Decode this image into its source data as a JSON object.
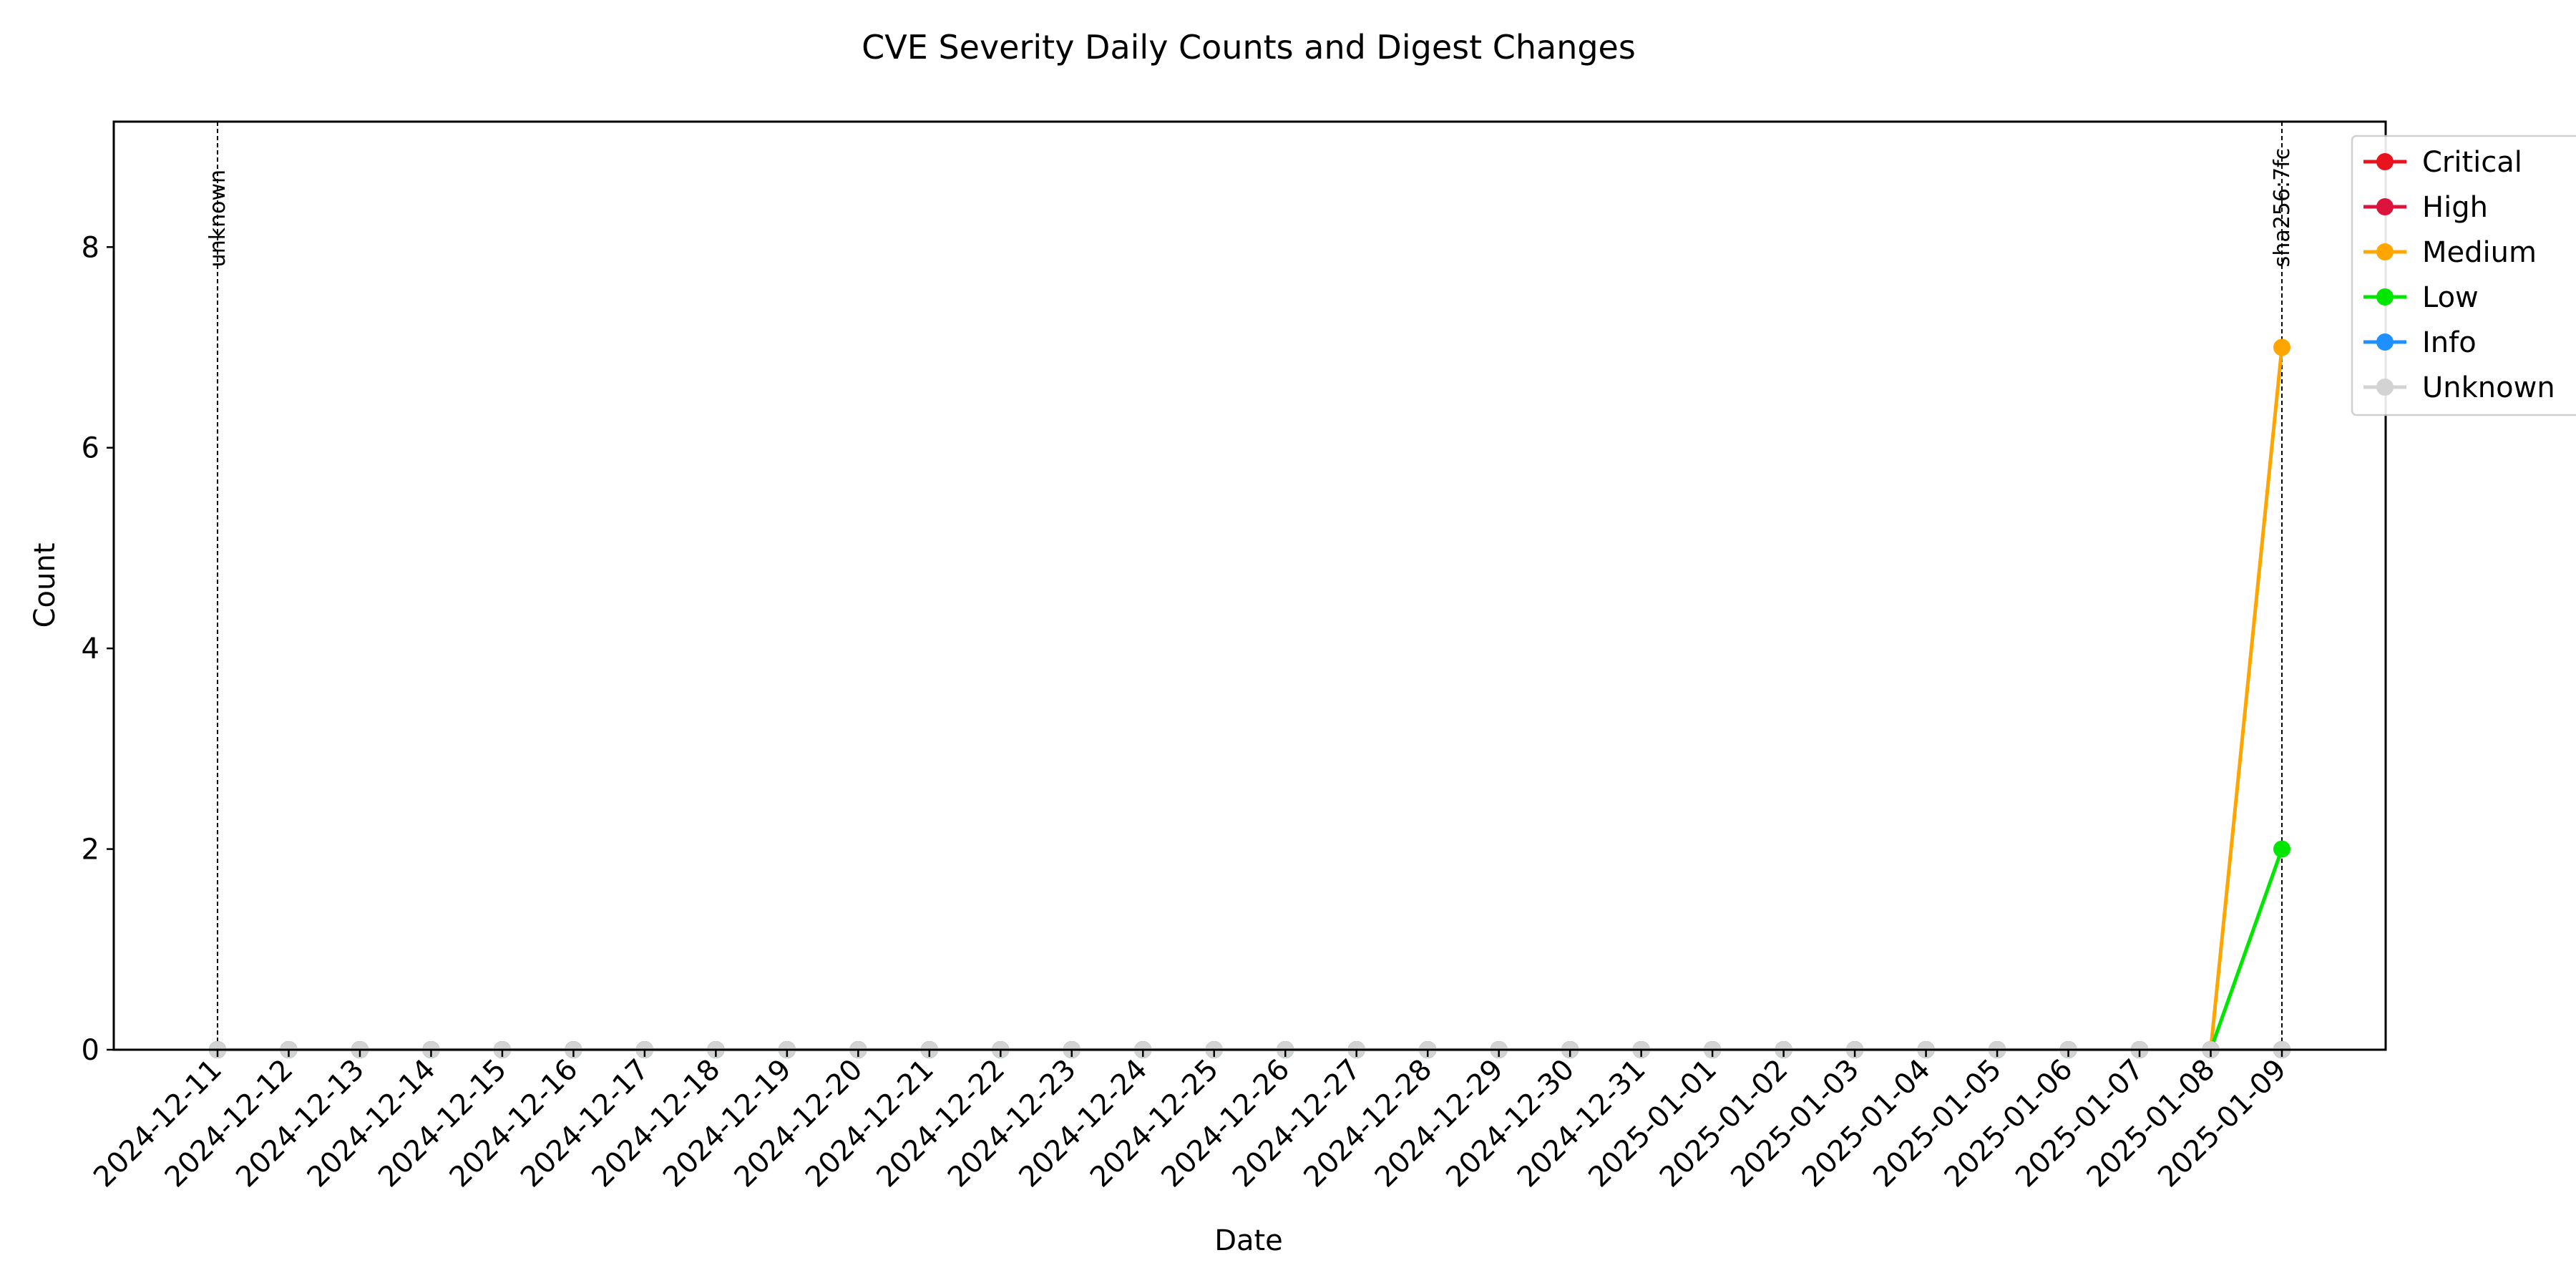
{
  "chart_data": {
    "type": "line",
    "title": "CVE Severity Daily Counts and Digest Changes",
    "xlabel": "Date",
    "ylabel": "Count",
    "ylim": [
      0,
      9.25
    ],
    "yticks": [
      0,
      2,
      4,
      6,
      8
    ],
    "categories": [
      "2024-12-11",
      "2024-12-12",
      "2024-12-13",
      "2024-12-14",
      "2024-12-15",
      "2024-12-16",
      "2024-12-17",
      "2024-12-18",
      "2024-12-19",
      "2024-12-20",
      "2024-12-21",
      "2024-12-22",
      "2024-12-23",
      "2024-12-24",
      "2024-12-25",
      "2024-12-26",
      "2024-12-27",
      "2024-12-28",
      "2024-12-29",
      "2024-12-30",
      "2024-12-31",
      "2025-01-01",
      "2025-01-02",
      "2025-01-03",
      "2025-01-04",
      "2025-01-05",
      "2025-01-06",
      "2025-01-07",
      "2025-01-08",
      "2025-01-09"
    ],
    "series": [
      {
        "name": "Critical",
        "color": "#e8131c",
        "values": [
          0,
          0,
          0,
          0,
          0,
          0,
          0,
          0,
          0,
          0,
          0,
          0,
          0,
          0,
          0,
          0,
          0,
          0,
          0,
          0,
          0,
          0,
          0,
          0,
          0,
          0,
          0,
          0,
          0,
          0
        ]
      },
      {
        "name": "High",
        "color": "#dc143c",
        "values": [
          0,
          0,
          0,
          0,
          0,
          0,
          0,
          0,
          0,
          0,
          0,
          0,
          0,
          0,
          0,
          0,
          0,
          0,
          0,
          0,
          0,
          0,
          0,
          0,
          0,
          0,
          0,
          0,
          0,
          0
        ]
      },
      {
        "name": "Medium",
        "color": "#ffa500",
        "values": [
          0,
          0,
          0,
          0,
          0,
          0,
          0,
          0,
          0,
          0,
          0,
          0,
          0,
          0,
          0,
          0,
          0,
          0,
          0,
          0,
          0,
          0,
          0,
          0,
          0,
          0,
          0,
          0,
          0,
          7
        ]
      },
      {
        "name": "Low",
        "color": "#00e600",
        "values": [
          0,
          0,
          0,
          0,
          0,
          0,
          0,
          0,
          0,
          0,
          0,
          0,
          0,
          0,
          0,
          0,
          0,
          0,
          0,
          0,
          0,
          0,
          0,
          0,
          0,
          0,
          0,
          0,
          0,
          2
        ]
      },
      {
        "name": "Info",
        "color": "#1e90ff",
        "values": [
          0,
          0,
          0,
          0,
          0,
          0,
          0,
          0,
          0,
          0,
          0,
          0,
          0,
          0,
          0,
          0,
          0,
          0,
          0,
          0,
          0,
          0,
          0,
          0,
          0,
          0,
          0,
          0,
          0,
          0
        ]
      },
      {
        "name": "Unknown",
        "color": "#d3d3d3",
        "values": [
          0,
          0,
          0,
          0,
          0,
          0,
          0,
          0,
          0,
          0,
          0,
          0,
          0,
          0,
          0,
          0,
          0,
          0,
          0,
          0,
          0,
          0,
          0,
          0,
          0,
          0,
          0,
          0,
          0,
          0
        ]
      }
    ],
    "digest_changes": [
      {
        "date": "2024-12-11",
        "label": "unknown"
      },
      {
        "date": "2025-01-09",
        "label": "sha256:7fc"
      }
    ],
    "legend": "upper-right outside",
    "grid": false
  }
}
